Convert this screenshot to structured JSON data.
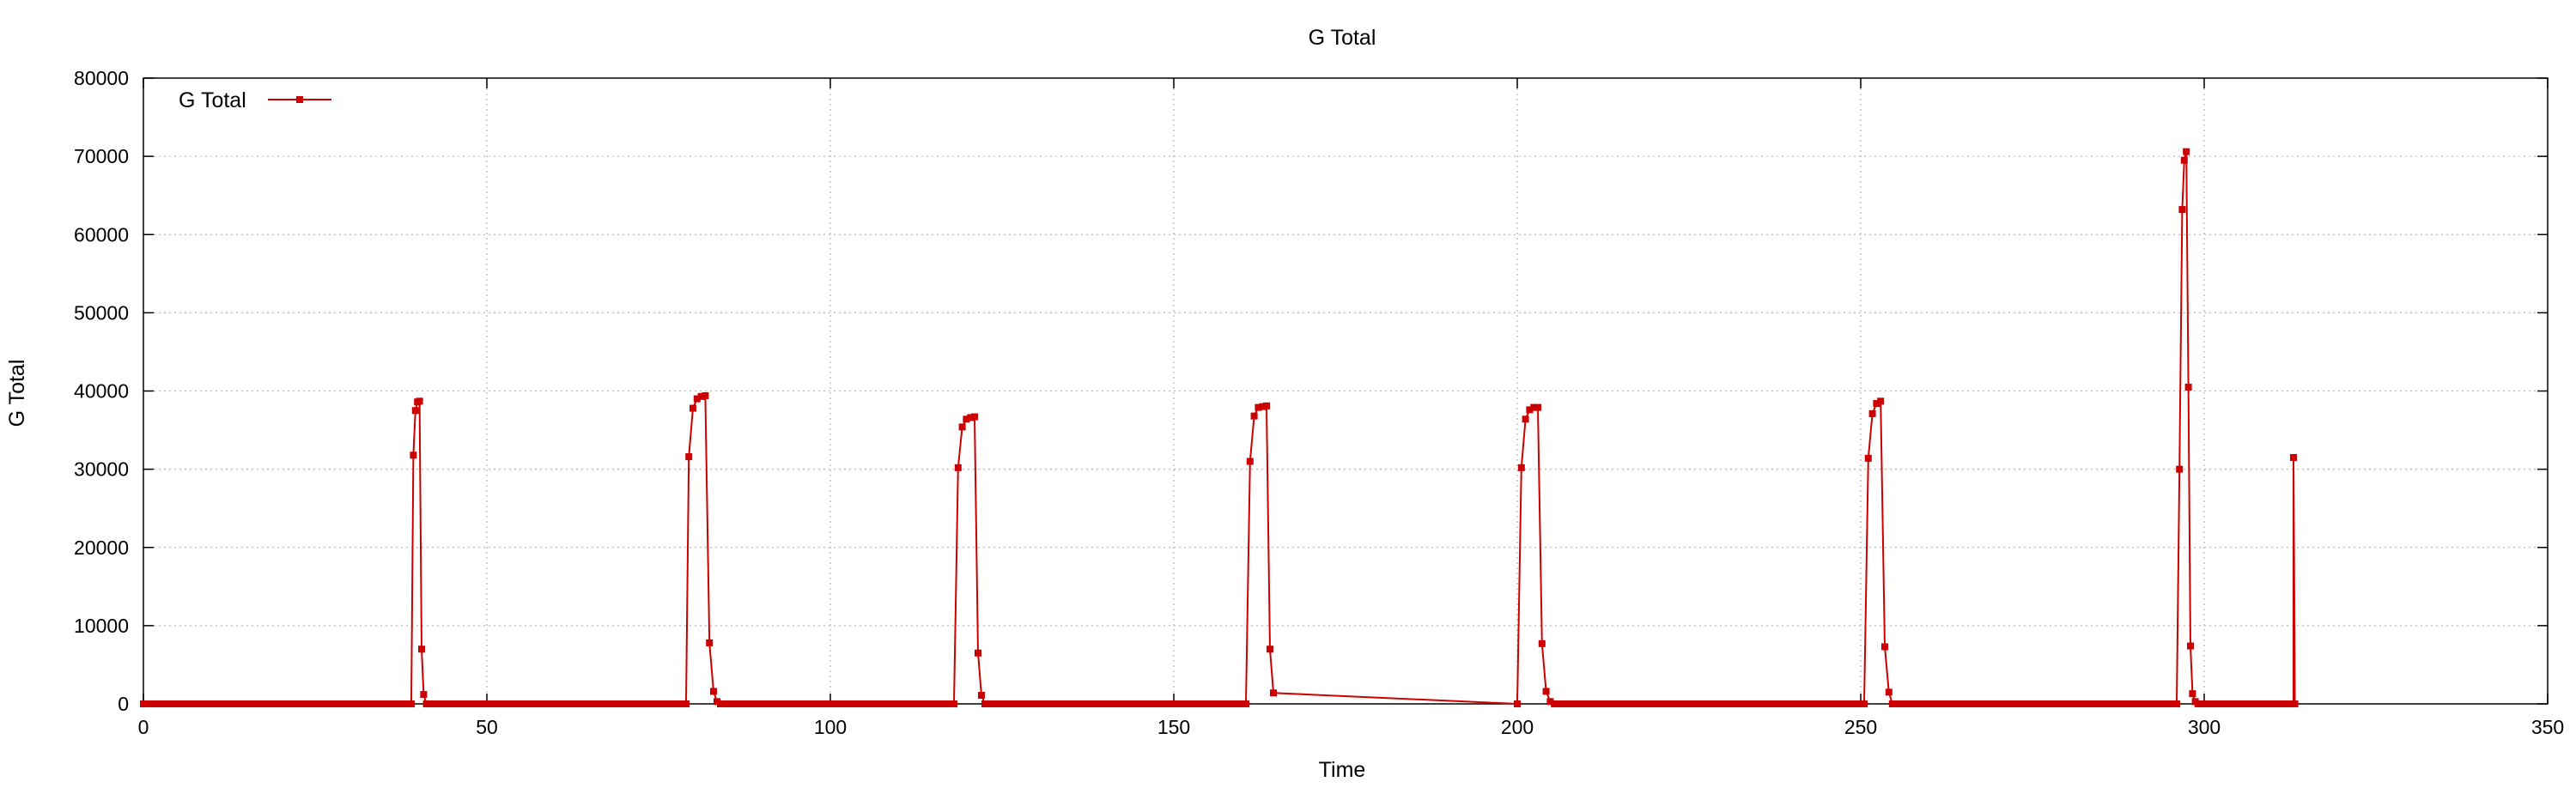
{
  "chart_data": {
    "type": "line",
    "title": "G Total",
    "xlabel": "Time",
    "ylabel": "G Total",
    "xlim": [
      0,
      350
    ],
    "ylim": [
      0,
      80000
    ],
    "xticks": [
      0,
      50,
      100,
      150,
      200,
      250,
      300,
      350
    ],
    "yticks": [
      0,
      10000,
      20000,
      30000,
      40000,
      50000,
      60000,
      70000,
      80000
    ],
    "grid": true,
    "legend_position": "top-left",
    "series": [
      {
        "name": "G Total",
        "color": "#cc0000",
        "marker": "square",
        "x": [
          0,
          39,
          39.3,
          39.6,
          39.9,
          40.2,
          40.5,
          40.8,
          41.2,
          79,
          79.4,
          80,
          80.6,
          81.2,
          81.8,
          82.4,
          83,
          83.5,
          84,
          118,
          118.6,
          119.2,
          119.8,
          120.4,
          121,
          121.5,
          122,
          122.5,
          160.5,
          161.1,
          161.7,
          162.3,
          162.9,
          163.5,
          164,
          164.5,
          200,
          200.6,
          201.2,
          201.8,
          202.4,
          203,
          203.6,
          204.2,
          204.8,
          205.4,
          250.5,
          251.1,
          251.7,
          252.3,
          252.9,
          253.5,
          254.1,
          254.6,
          296,
          296.4,
          296.8,
          297.1,
          297.4,
          297.7,
          298,
          298.3,
          298.7,
          299.1,
          313,
          313,
          313.2
        ],
        "y": [
          0,
          0,
          31800,
          37500,
          38600,
          38700,
          7000,
          1200,
          0,
          0,
          31600,
          37800,
          39000,
          39300,
          39400,
          7800,
          1600,
          300,
          0,
          0,
          30200,
          35400,
          36400,
          36600,
          36700,
          6500,
          1100,
          0,
          0,
          31000,
          36800,
          37900,
          38000,
          38100,
          7000,
          1400,
          0,
          30200,
          36400,
          37600,
          37900,
          37900,
          7700,
          1600,
          300,
          0,
          0,
          31400,
          37100,
          38400,
          38700,
          7300,
          1500,
          0,
          0,
          30000,
          63200,
          69500,
          70600,
          40500,
          7400,
          1300,
          300,
          0,
          0,
          31500,
          0
        ]
      }
    ]
  }
}
